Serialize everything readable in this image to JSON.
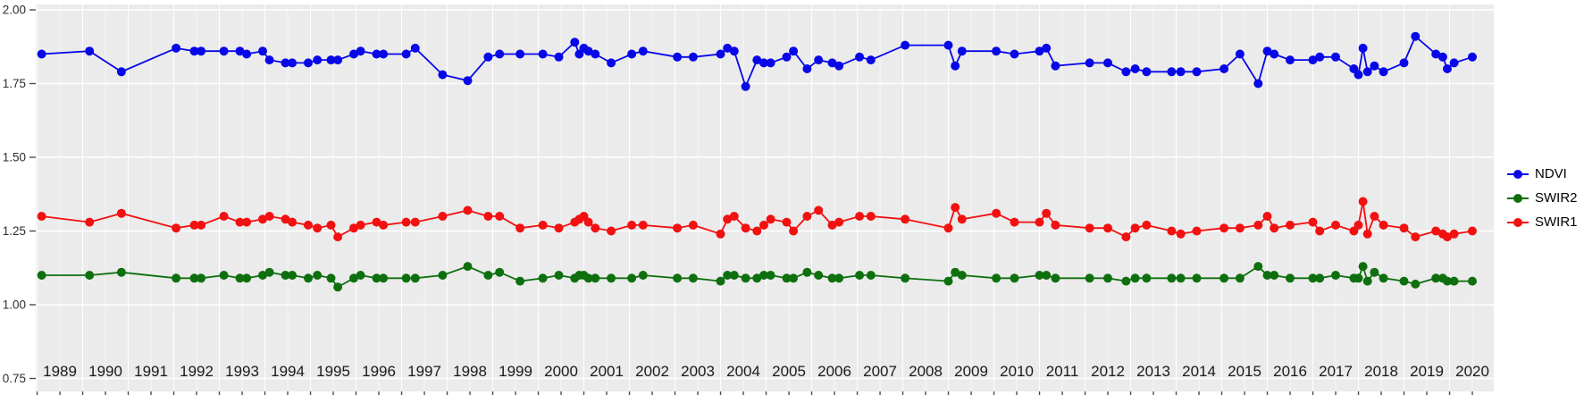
{
  "chart_data": {
    "type": "line",
    "title": "",
    "xlabel": "",
    "ylabel": "",
    "panel_background": "#EBEBEB",
    "grid_color": "#FFFFFF",
    "axis_tick_color": "#4D4D4D",
    "grid": true,
    "x_range": [
      1988.97,
      2020.97
    ],
    "y_range": [
      0.73,
      2.02
    ],
    "y_tick_labels": [
      "2.00",
      "1.75",
      "1.50",
      "1.25",
      "1.00",
      "0.75"
    ],
    "y_tick_values": [
      2.0,
      1.75,
      1.5,
      1.25,
      1.0,
      0.75
    ],
    "x_tick_labels": [
      "1989",
      "1990",
      "1991",
      "1992",
      "1993",
      "1994",
      "1995",
      "1996",
      "1997",
      "1998",
      "1999",
      "2000",
      "2001",
      "2002",
      "2003",
      "2004",
      "2005",
      "2006",
      "2007",
      "2008",
      "2009",
      "2010",
      "2011",
      "2012",
      "2013",
      "2014",
      "2015",
      "2016",
      "2017",
      "2018",
      "2019",
      "2020"
    ],
    "x": [
      1989.1,
      1990.15,
      1990.85,
      1992.05,
      1992.45,
      1992.6,
      1993.1,
      1993.45,
      1993.6,
      1993.95,
      1994.1,
      1994.45,
      1994.6,
      1994.95,
      1995.15,
      1995.45,
      1995.6,
      1995.95,
      1996.1,
      1996.45,
      1996.6,
      1997.1,
      1997.3,
      1997.9,
      1998.45,
      1998.9,
      1999.15,
      1999.6,
      2000.1,
      2000.45,
      2000.8,
      2000.9,
      2001.0,
      2001.1,
      2001.25,
      2001.6,
      2002.05,
      2002.3,
      2003.05,
      2003.4,
      2004.0,
      2004.15,
      2004.3,
      2004.55,
      2004.8,
      2004.95,
      2005.1,
      2005.45,
      2005.6,
      2005.9,
      2006.15,
      2006.45,
      2006.6,
      2007.05,
      2007.3,
      2008.05,
      2009.0,
      2009.15,
      2009.3,
      2010.05,
      2010.45,
      2011.0,
      2011.15,
      2011.35,
      2012.1,
      2012.5,
      2012.9,
      2013.1,
      2013.35,
      2013.9,
      2014.1,
      2014.45,
      2015.05,
      2015.4,
      2015.8,
      2016.0,
      2016.15,
      2016.5,
      2017.0,
      2017.15,
      2017.5,
      2017.9,
      2018.0,
      2018.1,
      2018.2,
      2018.35,
      2018.55,
      2019.0,
      2019.25,
      2019.7,
      2019.85,
      2019.95,
      2020.1,
      2020.5
    ],
    "series": [
      {
        "name": "NDVI",
        "color": "#0707E8",
        "values": [
          1.85,
          1.86,
          1.79,
          1.87,
          1.86,
          1.86,
          1.86,
          1.86,
          1.85,
          1.86,
          1.83,
          1.82,
          1.82,
          1.82,
          1.83,
          1.83,
          1.83,
          1.85,
          1.86,
          1.85,
          1.85,
          1.85,
          1.87,
          1.78,
          1.76,
          1.84,
          1.85,
          1.85,
          1.85,
          1.84,
          1.89,
          1.85,
          1.87,
          1.86,
          1.85,
          1.82,
          1.85,
          1.86,
          1.84,
          1.84,
          1.85,
          1.87,
          1.86,
          1.74,
          1.83,
          1.82,
          1.82,
          1.84,
          1.86,
          1.8,
          1.83,
          1.82,
          1.81,
          1.84,
          1.83,
          1.88,
          1.88,
          1.81,
          1.86,
          1.86,
          1.85,
          1.86,
          1.87,
          1.81,
          1.82,
          1.82,
          1.79,
          1.8,
          1.79,
          1.79,
          1.79,
          1.79,
          1.8,
          1.85,
          1.75,
          1.86,
          1.85,
          1.83,
          1.83,
          1.84,
          1.84,
          1.8,
          1.78,
          1.87,
          1.79,
          1.81,
          1.79,
          1.82,
          1.91,
          1.85,
          1.84,
          1.8,
          1.82,
          1.84
        ]
      },
      {
        "name": "SWIR2",
        "color": "#0E6F0E",
        "values": [
          1.1,
          1.1,
          1.11,
          1.09,
          1.09,
          1.09,
          1.1,
          1.09,
          1.09,
          1.1,
          1.11,
          1.1,
          1.1,
          1.09,
          1.1,
          1.09,
          1.06,
          1.09,
          1.1,
          1.09,
          1.09,
          1.09,
          1.09,
          1.1,
          1.13,
          1.1,
          1.11,
          1.08,
          1.09,
          1.1,
          1.09,
          1.1,
          1.1,
          1.09,
          1.09,
          1.09,
          1.09,
          1.1,
          1.09,
          1.09,
          1.08,
          1.1,
          1.1,
          1.09,
          1.09,
          1.1,
          1.1,
          1.09,
          1.09,
          1.11,
          1.1,
          1.09,
          1.09,
          1.1,
          1.1,
          1.09,
          1.08,
          1.11,
          1.1,
          1.09,
          1.09,
          1.1,
          1.1,
          1.09,
          1.09,
          1.09,
          1.08,
          1.09,
          1.09,
          1.09,
          1.09,
          1.09,
          1.09,
          1.09,
          1.13,
          1.1,
          1.1,
          1.09,
          1.09,
          1.09,
          1.1,
          1.09,
          1.09,
          1.13,
          1.08,
          1.11,
          1.09,
          1.08,
          1.07,
          1.09,
          1.09,
          1.08,
          1.08,
          1.08
        ]
      },
      {
        "name": "SWIR1",
        "color": "#F21010",
        "values": [
          1.3,
          1.28,
          1.31,
          1.26,
          1.27,
          1.27,
          1.3,
          1.28,
          1.28,
          1.29,
          1.3,
          1.29,
          1.28,
          1.27,
          1.26,
          1.27,
          1.23,
          1.26,
          1.27,
          1.28,
          1.27,
          1.28,
          1.28,
          1.3,
          1.32,
          1.3,
          1.3,
          1.26,
          1.27,
          1.26,
          1.28,
          1.29,
          1.3,
          1.28,
          1.26,
          1.25,
          1.27,
          1.27,
          1.26,
          1.27,
          1.24,
          1.29,
          1.3,
          1.26,
          1.25,
          1.27,
          1.29,
          1.28,
          1.25,
          1.3,
          1.32,
          1.27,
          1.28,
          1.3,
          1.3,
          1.29,
          1.26,
          1.33,
          1.29,
          1.31,
          1.28,
          1.28,
          1.31,
          1.27,
          1.26,
          1.26,
          1.23,
          1.26,
          1.27,
          1.25,
          1.24,
          1.25,
          1.26,
          1.26,
          1.27,
          1.3,
          1.26,
          1.27,
          1.28,
          1.25,
          1.27,
          1.25,
          1.27,
          1.35,
          1.24,
          1.3,
          1.27,
          1.26,
          1.23,
          1.25,
          1.24,
          1.23,
          1.24,
          1.25
        ]
      }
    ],
    "legend": {
      "position": "right",
      "entries": [
        {
          "label": "NDVI",
          "color": "#0707E8"
        },
        {
          "label": "SWIR2",
          "color": "#0E6F0E"
        },
        {
          "label": "SWIR1",
          "color": "#F21010"
        }
      ]
    }
  }
}
